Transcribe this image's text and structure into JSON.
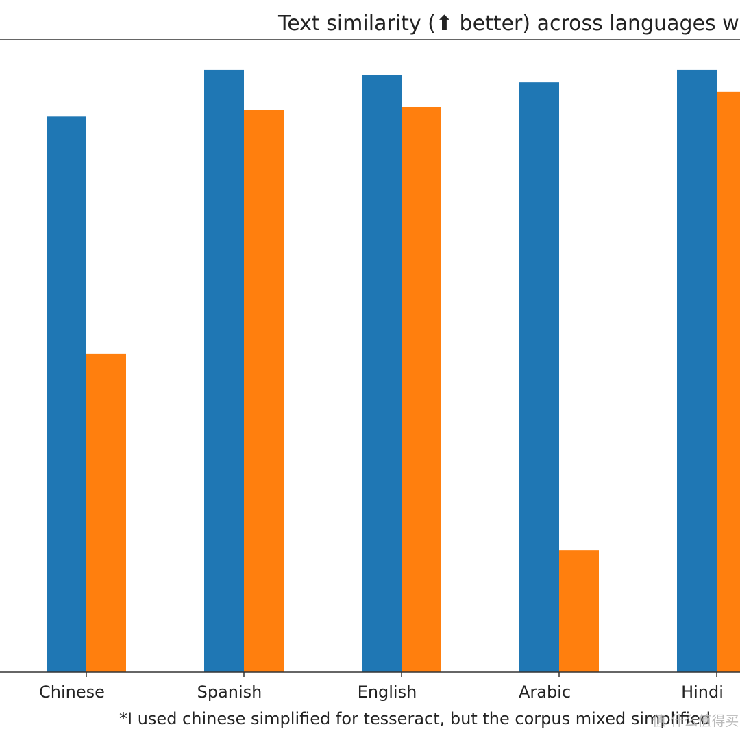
{
  "chart_data": {
    "type": "bar",
    "title": "Text similarity (⬆ better) across languages w",
    "footnote": "*I used chinese simplified for tesseract, but the corpus mixed simplified",
    "watermark": "值 什么值得买",
    "categories": [
      "Chinese",
      "Spanish",
      "English",
      "Arabic",
      "Hindi"
    ],
    "series": [
      {
        "color": "#1f77b4",
        "values": [
          0.89,
          0.965,
          0.957,
          0.945,
          0.965
        ]
      },
      {
        "color": "#ff7f0e",
        "values": [
          0.51,
          0.901,
          0.905,
          0.195,
          0.93
        ]
      }
    ],
    "ylim": [
      0,
      1
    ],
    "grid": false,
    "legend": "none"
  }
}
